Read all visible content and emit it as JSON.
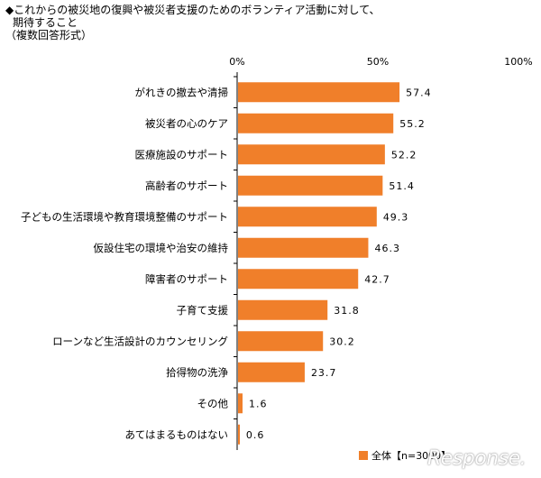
{
  "title": {
    "line1": "◆これからの被災地の復興や被災者支援のためのボランティア活動に対して、",
    "line2": "期待すること",
    "line3": "（複数回答形式）"
  },
  "legend": {
    "label": "全体【n=3000】",
    "color": "#f07f2a"
  },
  "logo": {
    "text": "Response."
  },
  "chart_data": {
    "type": "bar",
    "orientation": "horizontal",
    "categories": [
      "がれきの撤去や清掃",
      "被災者の心のケア",
      "医療施設のサポート",
      "高齢者のサポート",
      "子どもの生活環境や教育環境整備のサポート",
      "仮設住宅の環境や治安の維持",
      "障害者のサポート",
      "子育て支援",
      "ローンなど生活設計のカウンセリング",
      "拾得物の洗浄",
      "その他",
      "あてはまるものはない"
    ],
    "series": [
      {
        "name": "全体【n=3000】",
        "values": [
          57.4,
          55.2,
          52.2,
          51.4,
          49.3,
          46.3,
          42.7,
          31.8,
          30.2,
          23.7,
          1.6,
          0.6
        ]
      }
    ],
    "value_labels": [
      "57.4",
      "55.2",
      "52.2",
      "51.4",
      "49.3",
      "46.3",
      "42.7",
      "31.8",
      "30.2",
      "23.7",
      "1.6",
      "0.6"
    ],
    "xlim": [
      0,
      100
    ],
    "xticks": [
      "0%",
      "50%",
      "100%"
    ],
    "grid": false,
    "legend_position": "bottom-right",
    "bar_color": "#f07f2a"
  }
}
